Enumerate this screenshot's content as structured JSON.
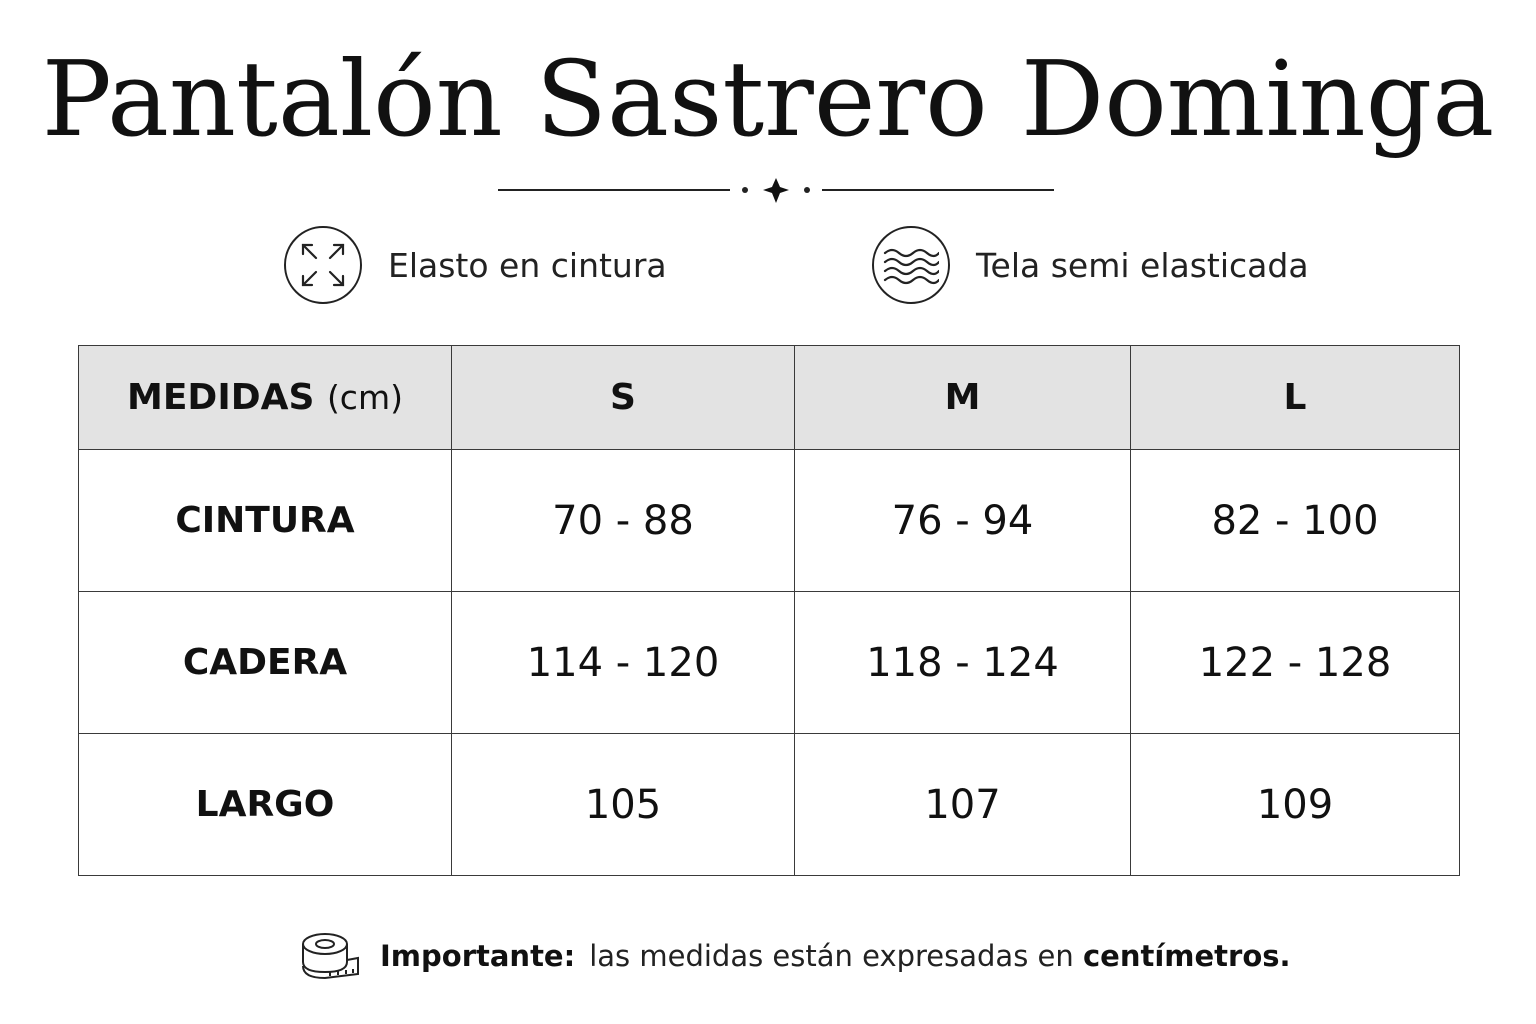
{
  "title": "Pantalón Sastrero Dominga",
  "features": [
    {
      "icon": "expand-arrows-icon",
      "label": "Elasto en cintura"
    },
    {
      "icon": "waves-icon",
      "label": "Tela semi elasticada"
    }
  ],
  "table": {
    "header": {
      "label": "MEDIDAS",
      "unit": "(cm)",
      "sizes": [
        "S",
        "M",
        "L"
      ]
    },
    "rows": [
      {
        "label": "CINTURA",
        "values": [
          "70 - 88",
          "76 - 94",
          "82 - 100"
        ]
      },
      {
        "label": "CADERA",
        "values": [
          "114 - 120",
          "118 - 124",
          "122 - 128"
        ]
      },
      {
        "label": "LARGO",
        "values": [
          "105",
          "107",
          "109"
        ]
      }
    ]
  },
  "note": {
    "icon": "measuring-tape-icon",
    "lead": "Importante:",
    "text": "las medidas están expresadas en",
    "emphasis": "centímetros."
  }
}
